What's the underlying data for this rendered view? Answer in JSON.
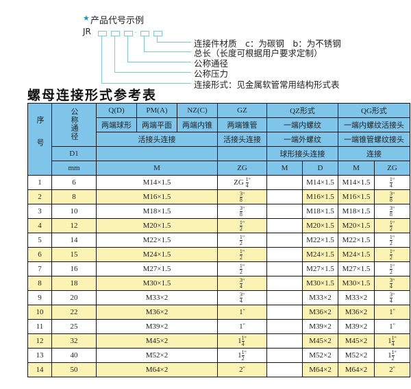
{
  "code": {
    "title": "产品代号示例",
    "prefix": "JR",
    "dash": "-",
    "labels": [
      "连接件材质　c：为碳钢　b：为不锈钢",
      "总长（长度可根据用户要求定制）",
      "公称通径",
      "公称压力",
      "连接形式：见金属软管常用结构形式表"
    ],
    "star_color": "#1a8fd0"
  },
  "title": "螺母连接形式参考表",
  "header": {
    "seq": "序号",
    "dn": "公称通径",
    "d1": "D1",
    "mm": "mm",
    "types": [
      "Q(D)",
      "PM(A)",
      "NZ(C)",
      "GZ",
      "QZ形式",
      "QG形式"
    ],
    "desc": [
      "两端球形",
      "两端平面",
      "两端内锥",
      "两端锥管",
      "一端内螺纹",
      "一端内螺纹活接头"
    ],
    "conn": [
      "活接头连接",
      "活接头连接",
      "一端外螺纹",
      "一端锥管螺纹接头"
    ],
    "conn2": [
      "球形接头连接",
      "连接"
    ],
    "units": [
      "M",
      "ZG",
      "M",
      "D",
      "M",
      "ZG"
    ]
  },
  "colors": {
    "header": "#7fc5ea",
    "alt_row": "#fbf3b4"
  },
  "rows": [
    {
      "n": "1",
      "dn": "6",
      "m": "M14×1.5",
      "zg": {
        "pre": "ZG",
        "num": "1",
        "den": "4",
        "int": ""
      },
      "qzm": "",
      "qzd": "M14×1.5",
      "qgm": "M14×1.5",
      "qgzg": {
        "num": "1",
        "den": "4",
        "int": ""
      }
    },
    {
      "n": "2",
      "dn": "8",
      "m": "M16×1.5",
      "zg": {
        "pre": "",
        "num": "3",
        "den": "8",
        "int": ""
      },
      "qzm": "",
      "qzd": "M16×1.5",
      "qgm": "M16×1.5",
      "qgzg": {
        "num": "3",
        "den": "8",
        "int": ""
      }
    },
    {
      "n": "3",
      "dn": "10",
      "m": "M18×1.5",
      "zg": {
        "pre": "",
        "num": "3",
        "den": "8",
        "int": ""
      },
      "qzm": "",
      "qzd": "M18×1.5",
      "qgm": "M18×1.5",
      "qgzg": {
        "num": "3",
        "den": "8",
        "int": ""
      }
    },
    {
      "n": "4",
      "dn": "12",
      "m": "M20×1.5",
      "zg": {
        "pre": "",
        "num": "1",
        "den": "2",
        "int": ""
      },
      "qzm": "",
      "qzd": "M20×1.5",
      "qgm": "M20×1.5",
      "qgzg": {
        "num": "1",
        "den": "2",
        "int": ""
      }
    },
    {
      "n": "5",
      "dn": "14",
      "m": "M22×1.5",
      "zg": {
        "pre": "",
        "num": "1",
        "den": "2",
        "int": ""
      },
      "qzm": "",
      "qzd": "M22×1.5",
      "qgm": "M22×1.5",
      "qgzg": {
        "num": "1",
        "den": "2",
        "int": ""
      }
    },
    {
      "n": "6",
      "dn": "15",
      "m": "M24×1.5",
      "zg": {
        "pre": "",
        "num": "1",
        "den": "2",
        "int": ""
      },
      "qzm": "",
      "qzd": "M24×1.5",
      "qgm": "M24×1.5",
      "qgzg": {
        "num": "1",
        "den": "2",
        "int": ""
      }
    },
    {
      "n": "7",
      "dn": "16",
      "m": "M27×1.5",
      "zg": {
        "pre": "",
        "num": "1",
        "den": "2",
        "int": ""
      },
      "qzm": "",
      "qzd": "M27×1.5",
      "qgm": "M27×1.5",
      "qgzg": {
        "num": "1",
        "den": "2",
        "int": ""
      }
    },
    {
      "n": "8",
      "dn": "18",
      "m": "M30×1.5",
      "zg": {
        "pre": "",
        "num": "3",
        "den": "4",
        "int": ""
      },
      "qzm": "",
      "qzd": "M30×1.5",
      "qgm": "M30×1.5",
      "qgzg": {
        "num": "3",
        "den": "4",
        "int": ""
      }
    },
    {
      "n": "9",
      "dn": "20",
      "m": "M33×2",
      "zg": {
        "pre": "",
        "num": "3",
        "den": "4",
        "int": ""
      },
      "qzm": "",
      "qzd": "M33×2",
      "qgm": "M33×2",
      "qgzg": {
        "num": "3",
        "den": "4",
        "int": ""
      }
    },
    {
      "n": "10",
      "dn": "22",
      "m": "M36×2",
      "zg": {
        "pre": "",
        "num": "",
        "den": "",
        "int": "1"
      },
      "qzm": "",
      "qzd": "M36×2",
      "qgm": "M36×2",
      "qgzg": {
        "num": "",
        "den": "",
        "int": "1"
      }
    },
    {
      "n": "11",
      "dn": "25",
      "m": "M39×2",
      "zg": {
        "pre": "",
        "num": "",
        "den": "",
        "int": "1"
      },
      "qzm": "",
      "qzd": "M39×2",
      "qgm": "M39×2",
      "qgzg": {
        "num": "",
        "den": "",
        "int": "1"
      }
    },
    {
      "n": "12",
      "dn": "32",
      "m": "M45×2",
      "zg": {
        "pre": "",
        "num": "1",
        "den": "4",
        "int": "1"
      },
      "qzm": "",
      "qzd": "M45×2",
      "qgm": "M45×2",
      "qgzg": {
        "num": "1",
        "den": "4",
        "int": "1"
      }
    },
    {
      "n": "13",
      "dn": "40",
      "m": "M52×2",
      "zg": {
        "pre": "",
        "num": "1",
        "den": "2",
        "int": "1"
      },
      "qzm": "",
      "qzd": "M52×2",
      "qgm": "M52×2",
      "qgzg": {
        "num": "1",
        "den": "2",
        "int": "1"
      }
    },
    {
      "n": "14",
      "dn": "50",
      "m": "M64×2",
      "zg": {
        "pre": "",
        "num": "",
        "den": "",
        "int": "2"
      },
      "qzm": "",
      "qzd": "M64×2",
      "qgm": "M64×2",
      "qgzg": {
        "num": "",
        "den": "",
        "int": "2"
      }
    }
  ]
}
